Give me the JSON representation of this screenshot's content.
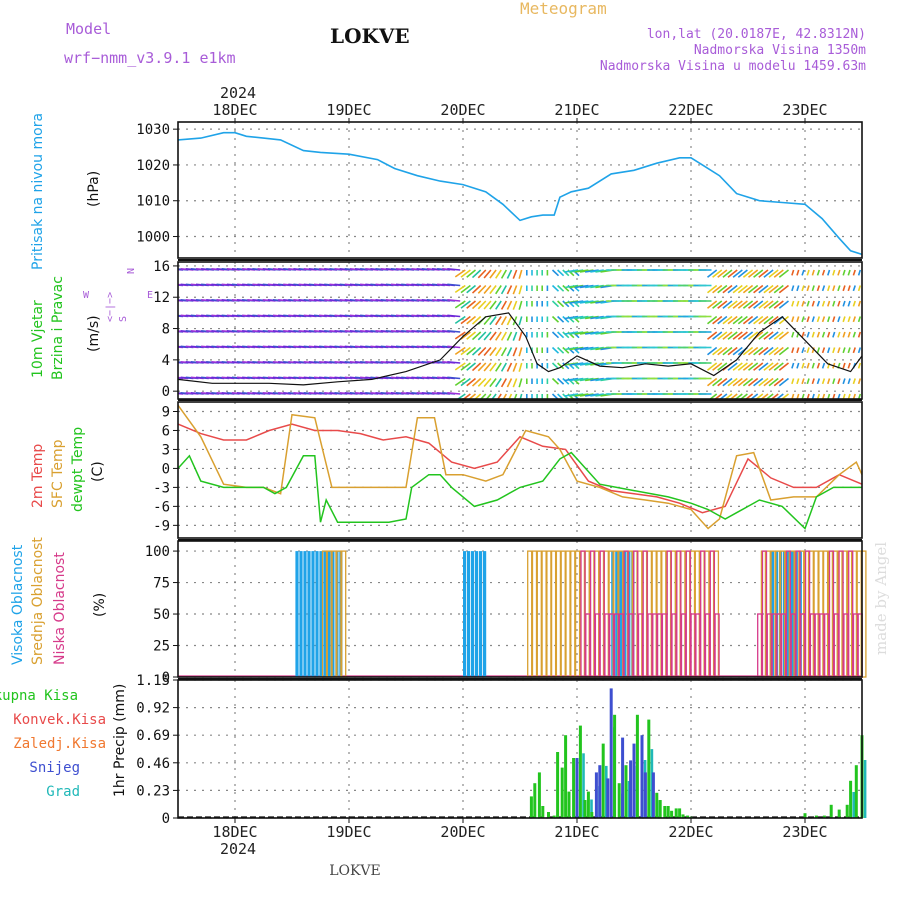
{
  "header": {
    "model_label": "Model",
    "model_name": "wrf−nmm_v3.9.1  e1km",
    "location_title": "LOKVE",
    "meteogram_label": "Meteogram",
    "coords": "lon,lat (20.0187E, 42.8312N)",
    "elevation": "Nadmorska Visina 1350m",
    "model_elevation": "Nadmorska Visina u modelu 1459.63m",
    "year_top": "2024",
    "year_bottom": "2024",
    "bottom_location": "LOKVE",
    "watermark": "made by Angel"
  },
  "colors": {
    "pressure": "#1fa3e8",
    "temp2m": "#e84a4a",
    "sfc_temp": "#d9a030",
    "dewpt": "#22c41e",
    "cloud_high": "#1fa3e8",
    "cloud_mid": "#d9a030",
    "cloud_low": "#d63a8a",
    "precip_total": "#22c41e",
    "precip_snow": "#3e4fd0",
    "precip_grad": "#20b8b8",
    "title_purple": "#a85cd8",
    "title_orange": "#e8b860"
  },
  "panel_labels": {
    "pressure": {
      "name": "Pritisak na nivou mora",
      "unit": "(hPa)"
    },
    "wind": {
      "name1": "10m Vjetar",
      "name2": "Brzina i Pravac",
      "unit": "(m/s)",
      "compass": {
        "n": "N",
        "w": "W",
        "e": "E",
        "s": "S",
        "arrows": "<−|−>"
      }
    },
    "temp": {
      "name1": "2m Temp",
      "name2": "SFC Temp",
      "name3": "dewpt Temp",
      "unit": "(C)"
    },
    "cloud": {
      "name1": "Visoka Oblacnost",
      "name2": "Srednja Oblacnost",
      "name3": "Niska Oblacnost",
      "unit": "(%)"
    },
    "precip": {
      "legend": [
        "Ukupna Kisa",
        "Konvek.Kisa",
        "Zaledj.Kisa",
        "Snijeg",
        "Grad"
      ],
      "unit": "1hr Precip (mm)"
    }
  },
  "chart_data": [
    {
      "type": "line",
      "title": "Pritisak na nivou mora",
      "ylabel": "(hPa)",
      "x_ticks": [
        "18DEC",
        "19DEC",
        "20DEC",
        "21DEC",
        "22DEC",
        "23DEC"
      ],
      "ylim": [
        994,
        1032
      ],
      "y_ticks": [
        1000,
        1010,
        1020,
        1030
      ],
      "grid": true,
      "series": [
        {
          "name": "Pritisak na nivou mora",
          "x": [
            17.5,
            17.7,
            17.9,
            18.0,
            18.1,
            18.25,
            18.4,
            18.6,
            18.75,
            19.0,
            19.25,
            19.4,
            19.6,
            19.8,
            20.0,
            20.2,
            20.35,
            20.5,
            20.6,
            20.7,
            20.8,
            20.85,
            20.95,
            21.1,
            21.3,
            21.5,
            21.7,
            21.9,
            22.0,
            22.1,
            22.25,
            22.4,
            22.6,
            22.8,
            23.0,
            23.15,
            23.3,
            23.4,
            23.5
          ],
          "y": [
            1027,
            1027.5,
            1029,
            1029,
            1028,
            1027.5,
            1027,
            1024,
            1023.5,
            1023,
            1021.5,
            1019,
            1017,
            1015.5,
            1014.5,
            1012.5,
            1009,
            1004.5,
            1005.5,
            1006,
            1006,
            1011,
            1012.5,
            1013.5,
            1017.5,
            1018.5,
            1020.5,
            1022,
            1022,
            1020,
            1017,
            1012,
            1010,
            1009.5,
            1009,
            1005,
            999.5,
            996,
            995
          ]
        }
      ]
    },
    {
      "type": "line",
      "title": "10m Vjetar Brzina i Pravac",
      "ylabel": "(m/s)",
      "x_ticks": [
        "18DEC",
        "19DEC",
        "20DEC",
        "21DEC",
        "22DEC",
        "23DEC"
      ],
      "ylim": [
        -1,
        16.5
      ],
      "y_ticks": [
        0,
        4,
        8,
        12,
        16
      ],
      "grid": true,
      "series": [
        {
          "name": "Brzina",
          "x": [
            17.5,
            17.8,
            18.0,
            18.3,
            18.6,
            18.9,
            19.2,
            19.5,
            19.8,
            20.0,
            20.2,
            20.4,
            20.55,
            20.65,
            20.75,
            20.85,
            21.0,
            21.2,
            21.4,
            21.6,
            21.8,
            22.0,
            22.2,
            22.4,
            22.6,
            22.8,
            23.0,
            23.2,
            23.4,
            23.5
          ],
          "y": [
            1.5,
            1.0,
            1.0,
            1.0,
            0.8,
            1.2,
            1.5,
            2.5,
            4.0,
            7.0,
            9.5,
            10.0,
            7.0,
            3.5,
            2.5,
            3.0,
            4.5,
            3.2,
            3.0,
            3.5,
            3.2,
            3.5,
            2.0,
            4.0,
            7.5,
            9.5,
            6.5,
            3.5,
            2.5,
            4.5
          ]
        }
      ]
    },
    {
      "type": "line",
      "title": "",
      "ylabel": "(C)",
      "x_ticks": [
        "18DEC",
        "19DEC",
        "20DEC",
        "21DEC",
        "22DEC",
        "23DEC"
      ],
      "ylim": [
        -11,
        10.5
      ],
      "y_ticks": [
        -9,
        -6,
        -3,
        0,
        3,
        6,
        9
      ],
      "grid": true,
      "series": [
        {
          "name": "2m Temp",
          "x": [
            17.5,
            17.7,
            17.9,
            18.1,
            18.3,
            18.5,
            18.7,
            18.9,
            19.1,
            19.3,
            19.5,
            19.7,
            19.9,
            20.1,
            20.3,
            20.5,
            20.7,
            20.9,
            21.1,
            21.3,
            21.5,
            21.7,
            21.9,
            22.1,
            22.3,
            22.5,
            22.7,
            22.9,
            23.1,
            23.3,
            23.5
          ],
          "y": [
            7,
            5.5,
            4.5,
            4.5,
            6,
            7,
            6,
            6,
            5.5,
            4.5,
            5,
            4,
            1,
            0,
            1,
            5,
            3.5,
            3,
            -2,
            -3.5,
            -4,
            -4.5,
            -5.5,
            -7,
            -6,
            1.5,
            -1.5,
            -3,
            -3,
            -1,
            -2.5
          ]
        },
        {
          "name": "SFC Temp",
          "x": [
            17.5,
            17.7,
            17.9,
            18.1,
            18.25,
            18.4,
            18.5,
            18.7,
            18.85,
            19.0,
            19.3,
            19.5,
            19.6,
            19.75,
            19.85,
            20.0,
            20.2,
            20.35,
            20.45,
            20.55,
            20.75,
            20.85,
            21.0,
            21.2,
            21.4,
            21.6,
            21.8,
            22.0,
            22.15,
            22.25,
            22.4,
            22.55,
            22.7,
            22.9,
            23.1,
            23.3,
            23.45,
            23.5
          ],
          "y": [
            10,
            5,
            -2.5,
            -3,
            -3,
            -4,
            8.5,
            8,
            -3,
            -3,
            -3,
            -3,
            8,
            8,
            -1,
            -1,
            -2,
            -1,
            2.5,
            6,
            5,
            3,
            -2,
            -3,
            -4.5,
            -5,
            -5.5,
            -6.5,
            -9.5,
            -8,
            2,
            2.5,
            -5,
            -4.5,
            -4.5,
            -1,
            1,
            -1
          ]
        },
        {
          "name": "dewpt Temp",
          "x": [
            17.5,
            17.6,
            17.7,
            17.9,
            18.1,
            18.25,
            18.35,
            18.45,
            18.6,
            18.7,
            18.75,
            18.8,
            18.9,
            19.2,
            19.35,
            19.5,
            19.55,
            19.7,
            19.8,
            19.9,
            20.1,
            20.3,
            20.5,
            20.7,
            20.85,
            20.95,
            21.0,
            21.2,
            21.5,
            21.8,
            22.0,
            22.15,
            22.3,
            22.4,
            22.5,
            22.6,
            22.8,
            23.0,
            23.1,
            23.25,
            23.5
          ],
          "y": [
            0,
            2,
            -2,
            -3,
            -3,
            -3,
            -4,
            -3,
            2,
            2,
            -8.5,
            -5,
            -8.5,
            -8.5,
            -8.5,
            -8,
            -3,
            -1,
            -1,
            -3,
            -6,
            -5,
            -3,
            -2,
            1.5,
            2.5,
            1.5,
            -2.5,
            -3.5,
            -4.5,
            -5.5,
            -6.5,
            -8,
            -7,
            -6,
            -5,
            -6,
            -9.5,
            -4.5,
            -3,
            -3
          ]
        }
      ]
    },
    {
      "type": "bar",
      "title": "",
      "ylabel": "(%)",
      "x_ticks": [
        "18DEC",
        "19DEC",
        "20DEC",
        "21DEC",
        "22DEC",
        "23DEC"
      ],
      "ylim": [
        0,
        108
      ],
      "y_ticks": [
        0,
        25,
        50,
        75,
        100
      ],
      "grid": true,
      "series": [
        {
          "name": "Visoka Oblacnost",
          "x_ranges": [
            [
              18.53,
              18.93
            ],
            [
              20.0,
              20.2
            ],
            [
              21.3,
              21.5
            ],
            [
              22.7,
              22.97
            ]
          ],
          "value": 100
        },
        {
          "name": "Srednja Oblacnost",
          "x_ranges": [
            [
              18.75,
              18.95
            ],
            [
              20.55,
              22.2
            ],
            [
              22.6,
              23.5
            ]
          ],
          "value": 100
        },
        {
          "name": "Niska Oblacnost",
          "x_ranges": [
            [
              21.0,
              22.2
            ],
            [
              22.55,
              23.45
            ]
          ],
          "value": 50
        }
      ]
    },
    {
      "type": "bar",
      "title": "",
      "ylabel": "1hr Precip (mm)",
      "x_ticks": [
        "18DEC",
        "19DEC",
        "20DEC",
        "21DEC",
        "22DEC",
        "23DEC"
      ],
      "ylim": [
        0,
        1.15
      ],
      "y_ticks": [
        0,
        0.23,
        0.46,
        0.69,
        0.92,
        1.15
      ],
      "grid": true,
      "series": [
        {
          "name": "Ukupna Kisa",
          "x": [
            20.6,
            20.63,
            20.67,
            20.7,
            20.75,
            20.8,
            20.83,
            20.87,
            20.9,
            20.93,
            20.97,
            21.0,
            21.03,
            21.07,
            21.1,
            21.13,
            21.17,
            21.2,
            21.23,
            21.27,
            21.3,
            21.33,
            21.37,
            21.4,
            21.43,
            21.47,
            21.5,
            21.53,
            21.57,
            21.6,
            21.63,
            21.67,
            21.7,
            21.73,
            21.77,
            21.8,
            21.83,
            21.87,
            21.9,
            21.93,
            21.97,
            22.0,
            23.0,
            23.1,
            23.17,
            23.23,
            23.3,
            23.37,
            23.4,
            23.45,
            23.5
          ],
          "y": [
            0.18,
            0.29,
            0.38,
            0.1,
            0.05,
            0.02,
            0.55,
            0.42,
            0.69,
            0.22,
            0.5,
            0.5,
            0.77,
            0.15,
            0.22,
            0.05,
            0.38,
            0.44,
            0.62,
            0.33,
            1.08,
            0.86,
            0.29,
            0.67,
            0.44,
            0.48,
            0.62,
            0.86,
            0.69,
            0.38,
            0.82,
            0.38,
            0.21,
            0.15,
            0.1,
            0.1,
            0.06,
            0.08,
            0.08,
            0.03,
            0.02,
            0.01,
            0.04,
            0.02,
            0.02,
            0.11,
            0.07,
            0.11,
            0.31,
            0.44,
            0.69
          ]
        }
      ]
    }
  ]
}
